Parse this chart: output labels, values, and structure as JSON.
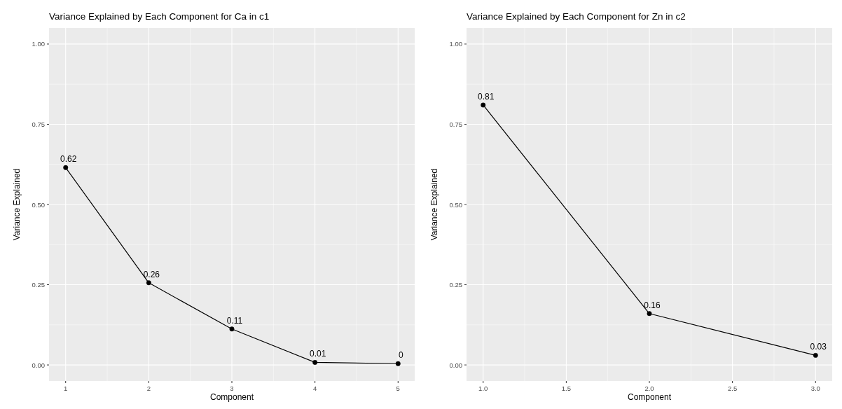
{
  "chart_data": [
    {
      "type": "line",
      "title": "Variance Explained by Each Component for Ca in c1",
      "xlabel": "Component",
      "ylabel": "Variance Explained",
      "x": [
        1,
        2,
        3,
        4,
        5
      ],
      "series": [
        {
          "color": "#000000",
          "values": [
            0.615,
            0.256,
            0.112,
            0.008,
            0.004
          ],
          "value_labels": [
            "0.62",
            "0.26",
            "0.11",
            "0.01",
            "0"
          ]
        }
      ],
      "xlim": [
        0.8,
        5.2
      ],
      "xticks": [
        1,
        2,
        3,
        4,
        5
      ],
      "ylim": [
        -0.05,
        1.05
      ],
      "yticks": [
        {
          "value": 0,
          "label": "0.00"
        },
        {
          "value": 0.25,
          "label": "0.25"
        },
        {
          "value": 0.5,
          "label": "0.50"
        },
        {
          "value": 0.75,
          "label": "0.75"
        },
        {
          "value": 1,
          "label": "1.00"
        }
      ],
      "grid": true,
      "marker": "circle"
    },
    {
      "type": "line",
      "title": "Variance Explained by Each Component for Zn in c2",
      "xlabel": "Component",
      "ylabel": "Variance Explained",
      "x": [
        1,
        2,
        3
      ],
      "series": [
        {
          "color": "#000000",
          "values": [
            0.81,
            0.16,
            0.03
          ],
          "value_labels": [
            "0.81",
            "0.16",
            "0.03"
          ]
        }
      ],
      "xlim": [
        0.9,
        3.1
      ],
      "xticks": [
        {
          "value": 1,
          "label": "1.0"
        },
        {
          "value": 1.5,
          "label": "1.5"
        },
        {
          "value": 2,
          "label": "2.0"
        },
        {
          "value": 2.5,
          "label": "2.5"
        },
        {
          "value": 3,
          "label": "3.0"
        }
      ],
      "ylim": [
        -0.05,
        1.05
      ],
      "yticks": [
        {
          "value": 0,
          "label": "0.00"
        },
        {
          "value": 0.25,
          "label": "0.25"
        },
        {
          "value": 0.5,
          "label": "0.50"
        },
        {
          "value": 0.75,
          "label": "0.75"
        },
        {
          "value": 1,
          "label": "1.00"
        }
      ],
      "grid": true,
      "marker": "circle"
    }
  ]
}
